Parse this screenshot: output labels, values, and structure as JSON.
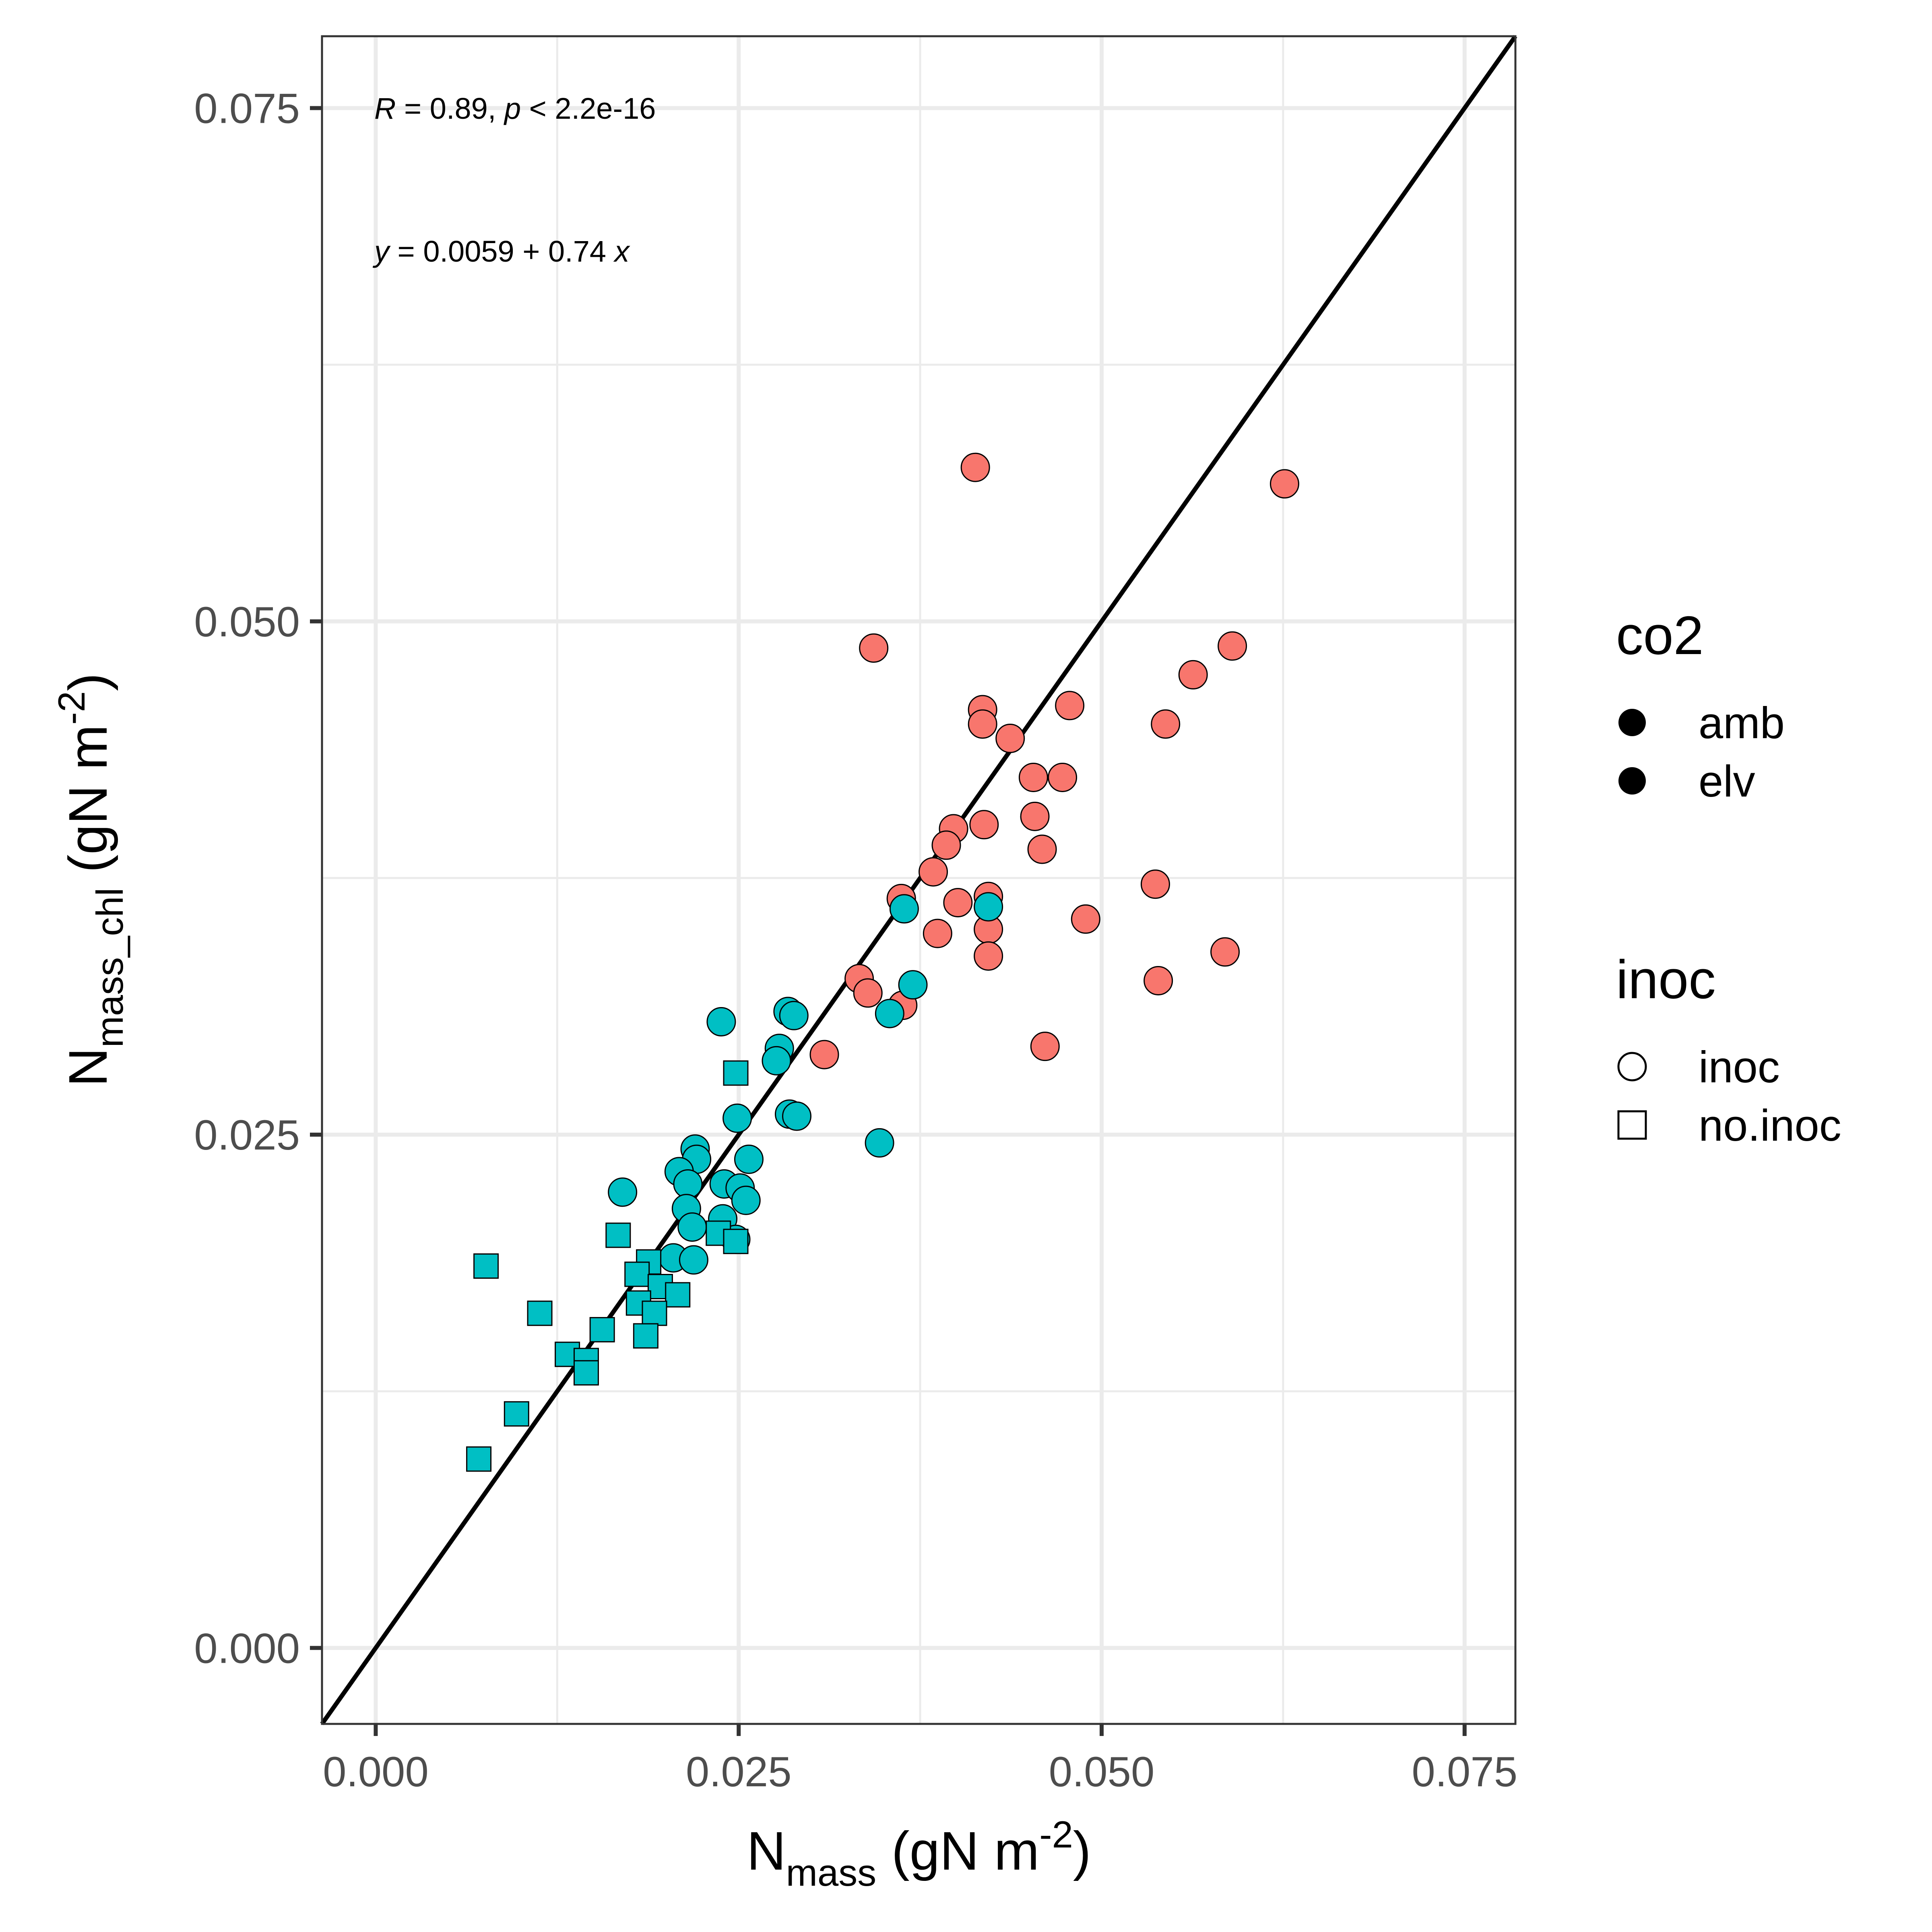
{
  "chart_data": {
    "type": "scatter",
    "xlabel": {
      "main": "N",
      "sub": "mass",
      "units": " (gN m",
      "sup": "-2",
      "close": ")"
    },
    "ylabel": {
      "main": "N",
      "sub": "mass_chl",
      "units": " (gN m",
      "sup": "-2",
      "close": ")"
    },
    "xlim": [
      -0.0037,
      0.0785
    ],
    "ylim": [
      -0.0037,
      0.0785
    ],
    "x_ticks": [
      0.0,
      0.025,
      0.05,
      0.075
    ],
    "y_ticks": [
      0.0,
      0.025,
      0.05,
      0.075
    ],
    "x_tick_labels": [
      "0.000",
      "0.025",
      "0.050",
      "0.075"
    ],
    "y_tick_labels": [
      "0.000",
      "0.025",
      "0.050",
      "0.075"
    ],
    "grid": true,
    "reference_line": {
      "type": "identity",
      "slope": 1,
      "intercept": 0
    },
    "annotations": {
      "stat": {
        "r_var": "R",
        "r_text": " = 0.89, ",
        "p_var": "p",
        "p_text": " < 2.2e-16"
      },
      "equation": {
        "y_var": "y",
        "mid": " = 0.0059 + 0.74 ",
        "x_var": "x"
      }
    },
    "legend": {
      "placement": "right",
      "co2": {
        "title": "co2",
        "items": [
          "amb",
          "elv"
        ]
      },
      "inoc": {
        "title": "inoc",
        "items": [
          "inoc",
          "no.inoc"
        ]
      }
    },
    "colors": {
      "amb": "#F8766D",
      "elv": "#00BFC4",
      "line": "#000000",
      "grid": "#EBEBEB"
    },
    "series": [
      {
        "co2": "amb",
        "inoc": "inoc",
        "marker": "circle",
        "color": "#F8766D",
        "points": [
          [
            0.0413,
            0.0575
          ],
          [
            0.0626,
            0.0567
          ],
          [
            0.0343,
            0.0487
          ],
          [
            0.059,
            0.0488
          ],
          [
            0.0563,
            0.0474
          ],
          [
            0.0478,
            0.0459
          ],
          [
            0.0418,
            0.0457
          ],
          [
            0.0418,
            0.045
          ],
          [
            0.0544,
            0.045
          ],
          [
            0.0437,
            0.0443
          ],
          [
            0.0453,
            0.0424
          ],
          [
            0.0473,
            0.0424
          ],
          [
            0.0454,
            0.0405
          ],
          [
            0.0398,
            0.0399
          ],
          [
            0.0419,
            0.0401
          ],
          [
            0.0393,
            0.0391
          ],
          [
            0.0459,
            0.0389
          ],
          [
            0.0384,
            0.0378
          ],
          [
            0.0362,
            0.0365
          ],
          [
            0.0401,
            0.0363
          ],
          [
            0.0422,
            0.0366
          ],
          [
            0.0537,
            0.0372
          ],
          [
            0.0489,
            0.0355
          ],
          [
            0.0387,
            0.0348
          ],
          [
            0.0422,
            0.035
          ],
          [
            0.0422,
            0.0337
          ],
          [
            0.0585,
            0.0339
          ],
          [
            0.0333,
            0.0326
          ],
          [
            0.0339,
            0.0319
          ],
          [
            0.0539,
            0.0325
          ],
          [
            0.0363,
            0.0313
          ],
          [
            0.0309,
            0.0289
          ],
          [
            0.0461,
            0.0293
          ]
        ]
      },
      {
        "co2": "elv",
        "inoc": "inoc",
        "marker": "circle",
        "color": "#00BFC4",
        "points": [
          [
            0.0364,
            0.036
          ],
          [
            0.0422,
            0.0361
          ],
          [
            0.037,
            0.0323
          ],
          [
            0.0354,
            0.0309
          ],
          [
            0.0284,
            0.031
          ],
          [
            0.0288,
            0.0308
          ],
          [
            0.0238,
            0.0305
          ],
          [
            0.0278,
            0.0292
          ],
          [
            0.0276,
            0.0286
          ],
          [
            0.0285,
            0.026
          ],
          [
            0.029,
            0.0259
          ],
          [
            0.0249,
            0.0258
          ],
          [
            0.0347,
            0.0246
          ],
          [
            0.022,
            0.0243
          ],
          [
            0.0221,
            0.0238
          ],
          [
            0.0257,
            0.0238
          ],
          [
            0.0209,
            0.0232
          ],
          [
            0.0215,
            0.0226
          ],
          [
            0.024,
            0.0226
          ],
          [
            0.0251,
            0.0224
          ],
          [
            0.017,
            0.0222
          ],
          [
            0.0255,
            0.0218
          ],
          [
            0.0214,
            0.0214
          ],
          [
            0.0239,
            0.0209
          ],
          [
            0.0218,
            0.0205
          ],
          [
            0.0248,
            0.0199
          ],
          [
            0.0205,
            0.019
          ],
          [
            0.0219,
            0.0189
          ]
        ]
      },
      {
        "co2": "elv",
        "inoc": "no.inoc",
        "marker": "square",
        "color": "#00BFC4",
        "points": [
          [
            0.0248,
            0.028
          ],
          [
            0.0167,
            0.0201
          ],
          [
            0.0236,
            0.0202
          ],
          [
            0.0248,
            0.0198
          ],
          [
            0.0076,
            0.0186
          ],
          [
            0.0188,
            0.0188
          ],
          [
            0.018,
            0.0182
          ],
          [
            0.0196,
            0.0176
          ],
          [
            0.0208,
            0.0172
          ],
          [
            0.0181,
            0.0168
          ],
          [
            0.0192,
            0.0163
          ],
          [
            0.0113,
            0.0163
          ],
          [
            0.0156,
            0.0155
          ],
          [
            0.0186,
            0.0152
          ],
          [
            0.0132,
            0.0143
          ],
          [
            0.0145,
            0.014
          ],
          [
            0.0145,
            0.0134
          ],
          [
            0.0097,
            0.0114
          ],
          [
            0.0071,
            0.0092
          ]
        ]
      }
    ]
  }
}
